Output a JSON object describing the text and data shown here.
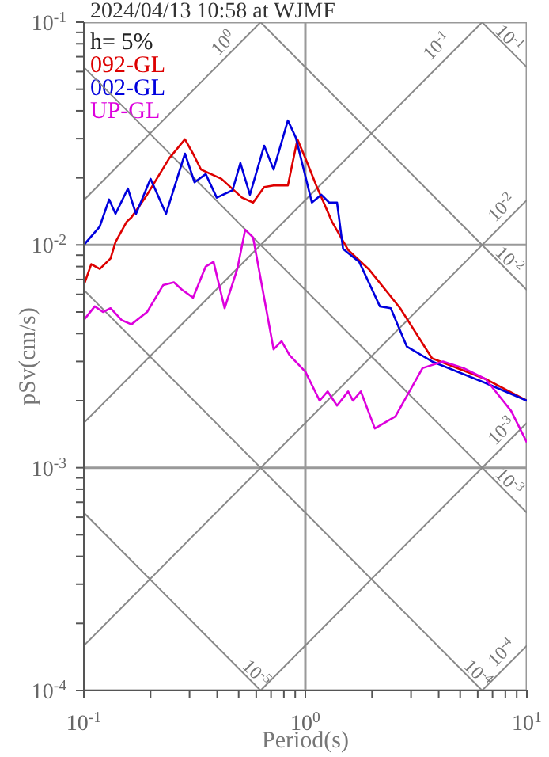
{
  "chart_data": {
    "type": "line",
    "title": "2024/04/13 10:58 at WJMF",
    "xlabel": "Period(s)",
    "ylabel": "pSv(cm/s)",
    "log": "xy",
    "grid": true,
    "legend": "top left",
    "marker": "none",
    "xlim": [
      0.1,
      10
    ],
    "ylim": [
      0.0001,
      0.1
    ],
    "xticks": [
      {
        "value": 0.1,
        "label": "10$^{-1}$"
      },
      {
        "value": 0.2,
        "label": null
      },
      {
        "value": 0.3,
        "label": null
      },
      {
        "value": 0.4,
        "label": null
      },
      {
        "value": 0.5,
        "label": null
      },
      {
        "value": 0.6,
        "label": null
      },
      {
        "value": 0.7,
        "label": null
      },
      {
        "value": 0.8,
        "label": null
      },
      {
        "value": 0.9,
        "label": null
      },
      {
        "value": 1,
        "label": "10$^{0}$"
      },
      {
        "value": 2,
        "label": null
      },
      {
        "value": 3,
        "label": null
      },
      {
        "value": 4,
        "label": null
      },
      {
        "value": 5,
        "label": null
      },
      {
        "value": 6,
        "label": null
      },
      {
        "value": 7,
        "label": null
      },
      {
        "value": 8,
        "label": null
      },
      {
        "value": 9,
        "label": null
      },
      {
        "value": 10,
        "label": "10$^{1}$"
      }
    ],
    "yticks": [
      {
        "value": 0.0001,
        "label": "10$^{-4}$"
      },
      {
        "value": 0.0002,
        "label": null
      },
      {
        "value": 0.0003,
        "label": null
      },
      {
        "value": 0.0004,
        "label": null
      },
      {
        "value": 0.0005,
        "label": null
      },
      {
        "value": 0.0006,
        "label": null
      },
      {
        "value": 0.0007,
        "label": null
      },
      {
        "value": 0.0008,
        "label": null
      },
      {
        "value": 0.0009,
        "label": null
      },
      {
        "value": 0.001,
        "label": "10$^{-3}$"
      },
      {
        "value": 0.002,
        "label": null
      },
      {
        "value": 0.003,
        "label": null
      },
      {
        "value": 0.004,
        "label": null
      },
      {
        "value": 0.005,
        "label": null
      },
      {
        "value": 0.006,
        "label": null
      },
      {
        "value": 0.007,
        "label": null
      },
      {
        "value": 0.008,
        "label": null
      },
      {
        "value": 0.009,
        "label": null
      },
      {
        "value": 0.01,
        "label": "10$^{-2}$"
      },
      {
        "value": 0.02,
        "label": null
      },
      {
        "value": 0.03,
        "label": null
      },
      {
        "value": 0.04,
        "label": null
      },
      {
        "value": 0.05,
        "label": null
      },
      {
        "value": 0.06,
        "label": null
      },
      {
        "value": 0.07,
        "label": null
      },
      {
        "value": 0.08,
        "label": null
      },
      {
        "value": 0.09,
        "label": null
      },
      {
        "value": 0.1,
        "label": "10$^{-1}$"
      }
    ],
    "annotations": [
      "h= 5%",
      "10$^{0}$",
      "10$^{-1}$",
      "10$^{-2}$",
      "10$^{-3}$",
      "10$^{-4}$",
      "10$^{-1}$",
      "10$^{-2}$",
      "10$^{-3}$",
      "10$^{-4}$",
      "10$^{-5}$"
    ],
    "series": [
      {
        "color": "#888888",
        "x": [
          0.1,
          0.628
        ],
        "values": [
          0.0159,
          0.1
        ]
      },
      {
        "color": "#888888",
        "x": [
          0.1,
          6.28
        ],
        "values": [
          0.00159,
          0.1
        ]
      },
      {
        "color": "#888888",
        "x": [
          0.1,
          10
        ],
        "values": [
          0.000159,
          0.0159
        ]
      },
      {
        "color": "#888888",
        "x": [
          0.628,
          10
        ],
        "values": [
          0.0001,
          0.00159
        ]
      },
      {
        "color": "#888888",
        "x": [
          6.28,
          10
        ],
        "values": [
          0.0001,
          0.000159
        ]
      },
      {
        "color": "#888888",
        "x": [
          6.28,
          10
        ],
        "values": [
          0.1,
          0.0628
        ]
      },
      {
        "color": "#888888",
        "x": [
          0.628,
          10
        ],
        "values": [
          0.1,
          0.00628
        ]
      },
      {
        "color": "#888888",
        "x": [
          0.1,
          10
        ],
        "values": [
          0.0628,
          0.000628
        ]
      },
      {
        "color": "#888888",
        "x": [
          0.1,
          6.28
        ],
        "values": [
          0.00628,
          0.0001
        ]
      },
      {
        "color": "#888888",
        "x": [
          0.1,
          0.628
        ],
        "values": [
          0.000628,
          0.0001
        ]
      },
      {
        "name": "092-GL",
        "color": "#dd0000",
        "x": [
          0.1,
          0.108,
          0.118,
          0.132,
          0.139,
          0.156,
          0.164,
          0.193,
          0.243,
          0.286,
          0.311,
          0.338,
          0.418,
          0.518,
          0.581,
          0.652,
          0.719,
          0.834,
          0.921,
          1.0,
          1.12,
          1.32,
          1.56,
          1.93,
          2.68,
          3.73,
          6.52,
          10
        ],
        "values": [
          0.0066,
          0.0082,
          0.0078,
          0.0087,
          0.0103,
          0.0127,
          0.0133,
          0.0168,
          0.0245,
          0.0298,
          0.0257,
          0.0218,
          0.0198,
          0.0163,
          0.0155,
          0.0182,
          0.0185,
          0.0185,
          0.0298,
          0.0245,
          0.0185,
          0.0127,
          0.0095,
          0.0078,
          0.0052,
          0.0031,
          0.0025,
          0.002
        ]
      },
      {
        "name": "002-GL",
        "color": "#0000dd",
        "x": [
          0.1,
          0.118,
          0.13,
          0.139,
          0.158,
          0.172,
          0.2,
          0.235,
          0.286,
          0.316,
          0.355,
          0.398,
          0.469,
          0.509,
          0.562,
          0.652,
          0.719,
          0.834,
          0.906,
          1.07,
          1.18,
          1.28,
          1.39,
          1.48,
          1.56,
          1.75,
          2.17,
          2.43,
          2.87,
          3.73,
          6.52,
          10
        ],
        "values": [
          0.01,
          0.0121,
          0.016,
          0.0138,
          0.0179,
          0.0138,
          0.0198,
          0.0138,
          0.0257,
          0.0191,
          0.0208,
          0.0163,
          0.0176,
          0.0233,
          0.0168,
          0.0279,
          0.0218,
          0.0362,
          0.0303,
          0.0155,
          0.0168,
          0.0155,
          0.0155,
          0.0096,
          0.0092,
          0.0084,
          0.0053,
          0.0052,
          0.0035,
          0.003,
          0.0024,
          0.002
        ]
      },
      {
        "name": "UP-GL",
        "color": "#dd00dd",
        "x": [
          0.1,
          0.112,
          0.122,
          0.132,
          0.148,
          0.164,
          0.193,
          0.228,
          0.255,
          0.277,
          0.311,
          0.355,
          0.385,
          0.432,
          0.493,
          0.535,
          0.581,
          0.719,
          0.781,
          0.849,
          1.0,
          1.16,
          1.26,
          1.39,
          1.56,
          1.64,
          1.78,
          2.06,
          2.55,
          3.38,
          4.18,
          5.18,
          6.52,
          8.49,
          10
        ],
        "values": [
          0.0046,
          0.0053,
          0.005,
          0.0052,
          0.0046,
          0.0044,
          0.005,
          0.0066,
          0.0068,
          0.0063,
          0.0058,
          0.008,
          0.0084,
          0.0052,
          0.0078,
          0.0117,
          0.0108,
          0.0034,
          0.0037,
          0.0032,
          0.0027,
          0.002,
          0.0022,
          0.0019,
          0.0022,
          0.002,
          0.0022,
          0.0015,
          0.0017,
          0.0028,
          0.003,
          0.0028,
          0.0025,
          0.0018,
          0.0013
        ]
      }
    ]
  }
}
